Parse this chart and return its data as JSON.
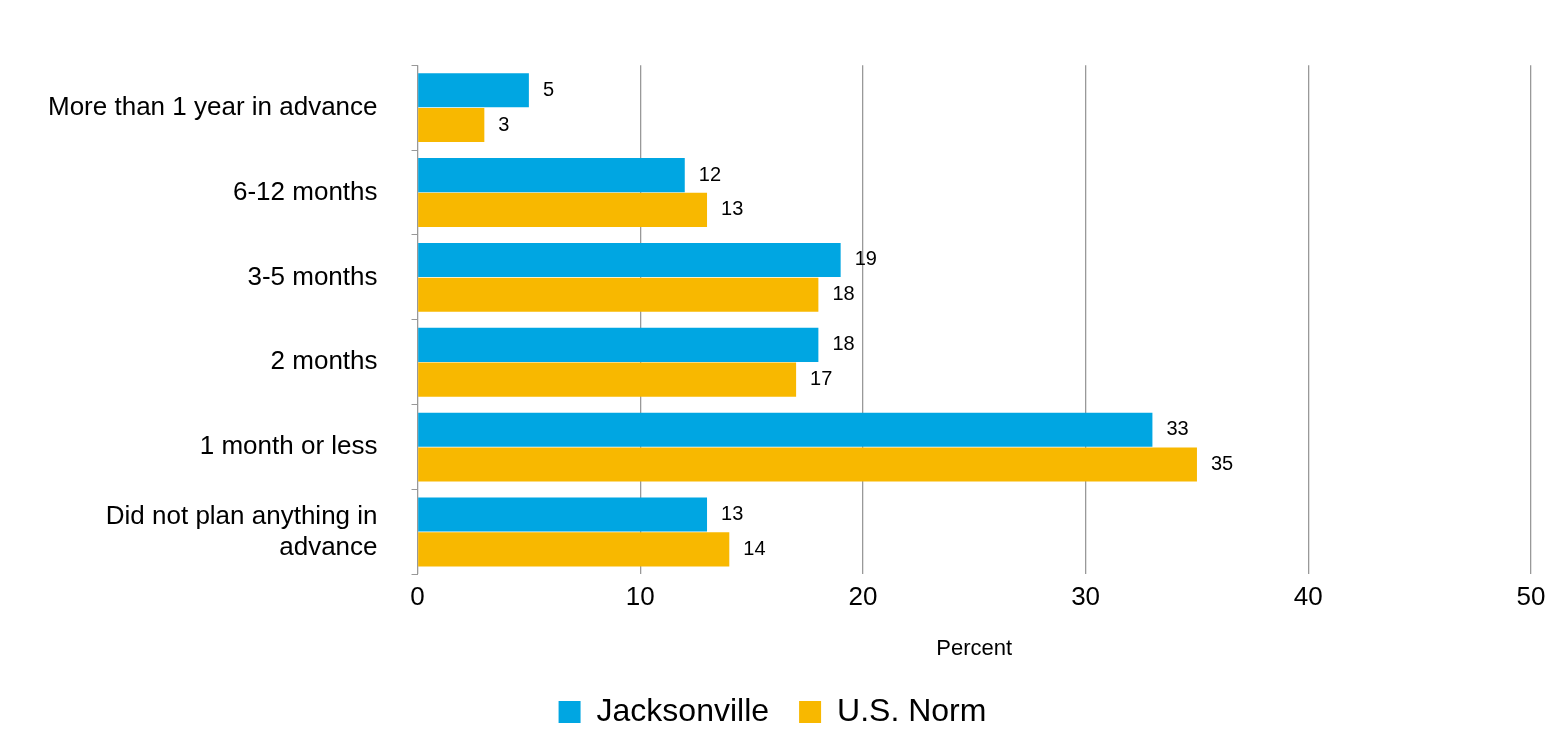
{
  "chart_data": {
    "type": "bar",
    "orientation": "horizontal",
    "xlabel": "Percent",
    "categories": [
      "More than 1 year in advance",
      "6-12 months",
      "3-5 months",
      "2 months",
      "1 month or less",
      "Did not plan anything in advance"
    ],
    "series": [
      {
        "name": "Jacksonville",
        "color": "#00a6e2",
        "values": [
          5,
          12,
          19,
          18,
          33,
          13
        ]
      },
      {
        "name": "U.S. Norm",
        "color": "#f8b800",
        "values": [
          3,
          13,
          18,
          17,
          35,
          14
        ]
      }
    ],
    "xlim": [
      0,
      50
    ],
    "xticks": [
      0,
      10,
      20,
      30,
      40,
      50
    ],
    "grid": "x",
    "legend": "bottom",
    "data_labels": true
  }
}
